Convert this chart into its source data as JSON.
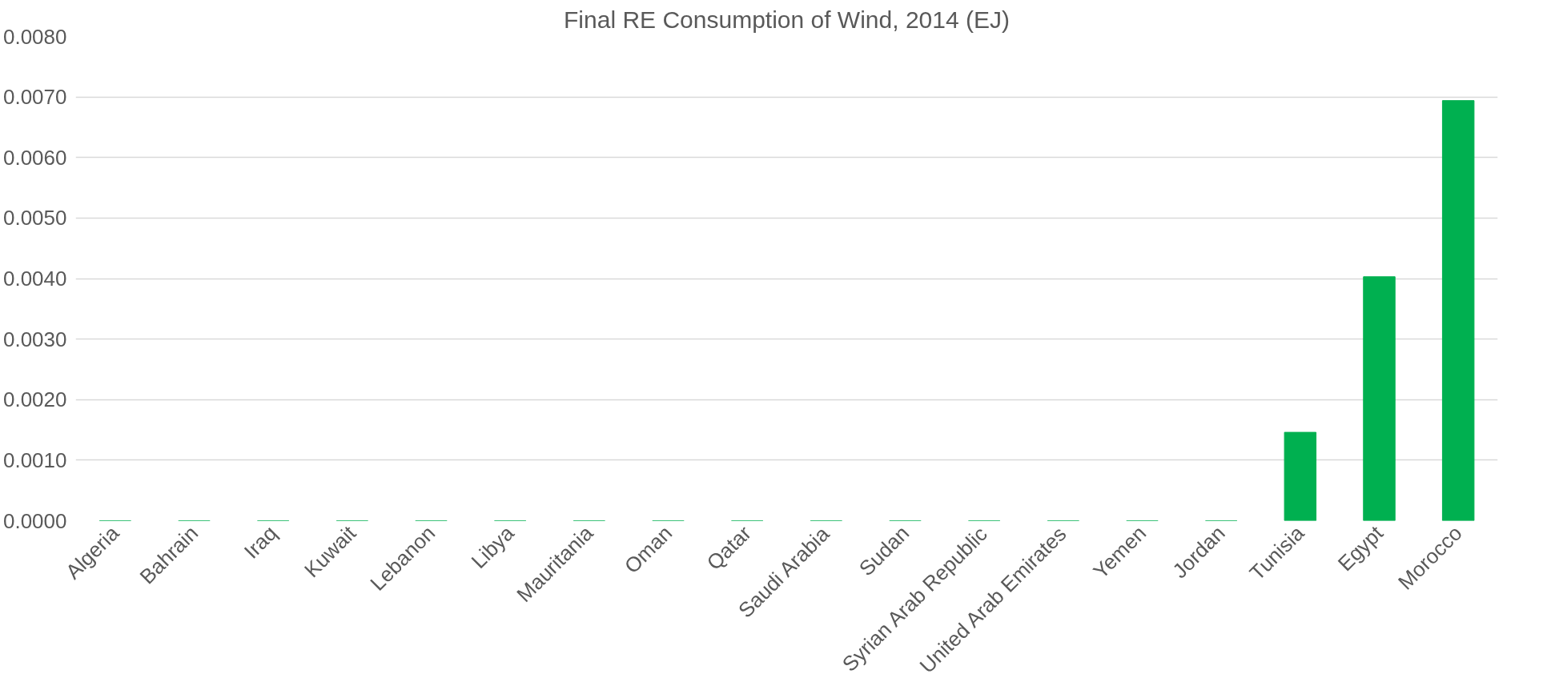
{
  "chart_data": {
    "type": "bar",
    "title": "Final RE Consumption of Wind, 2014 (EJ)",
    "categories": [
      "Algeria",
      "Bahrain",
      "Iraq",
      "Kuwait",
      "Lebanon",
      "Libya",
      "Mauritania",
      "Oman",
      "Qatar",
      "Saudi Arabia",
      "Sudan",
      "Syrian Arab Republic",
      "United Arab Emirates",
      "Yemen",
      "Jordan",
      "Tunisia",
      "Egypt",
      "Morocco"
    ],
    "values": [
      0,
      0,
      0,
      0,
      0,
      0,
      0,
      0,
      0,
      0,
      0,
      0,
      0,
      0,
      0,
      0.00146,
      0.00403,
      0.00694
    ],
    "color": "#00b050",
    "ylim": [
      0,
      0.008
    ],
    "yticks": [
      {
        "value": 0,
        "label": "0.0000"
      },
      {
        "value": 0.001,
        "label": "0.0010"
      },
      {
        "value": 0.002,
        "label": "0.0020"
      },
      {
        "value": 0.003,
        "label": "0.0030"
      },
      {
        "value": 0.004,
        "label": "0.0040"
      },
      {
        "value": 0.005,
        "label": "0.0050"
      },
      {
        "value": 0.006,
        "label": "0.0060"
      },
      {
        "value": 0.007,
        "label": "0.0070"
      },
      {
        "value": 0.008,
        "label": "0.0080"
      }
    ],
    "grid": "y"
  }
}
